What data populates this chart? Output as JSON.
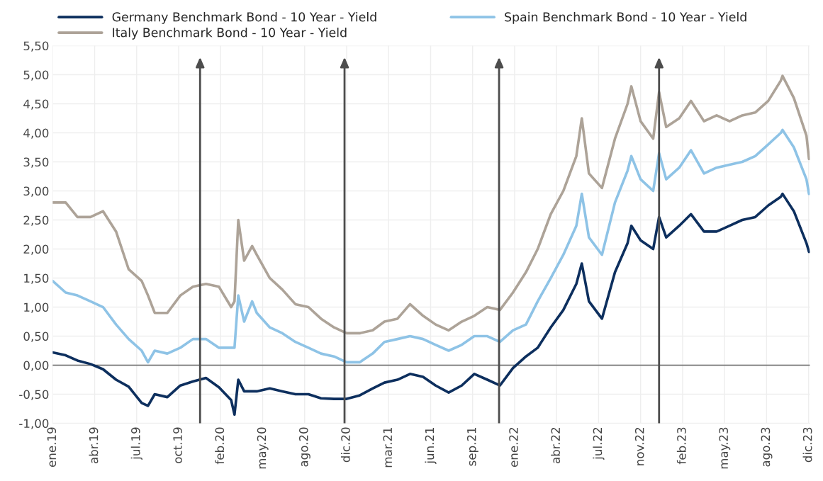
{
  "chart_data": {
    "type": "line",
    "x": [
      "2019-01-01",
      "2019-02-01",
      "2019-03-01",
      "2019-04-01",
      "2019-05-01",
      "2019-06-01",
      "2019-07-01",
      "2019-08-01",
      "2019-08-16",
      "2019-09-01",
      "2019-10-01",
      "2019-11-01",
      "2019-12-01",
      "2020-01-01",
      "2020-02-01",
      "2020-03-01",
      "2020-03-09",
      "2020-03-18",
      "2020-04-01",
      "2020-04-20",
      "2020-05-01",
      "2020-06-01",
      "2020-07-01",
      "2020-08-01",
      "2020-09-01",
      "2020-10-01",
      "2020-11-01",
      "2020-12-01",
      "2021-01-01",
      "2021-02-01",
      "2021-03-01",
      "2021-04-01",
      "2021-05-01",
      "2021-06-01",
      "2021-07-01",
      "2021-08-01",
      "2021-09-01",
      "2021-10-01",
      "2021-11-01",
      "2021-12-01",
      "2022-01-01",
      "2022-02-01",
      "2022-03-01",
      "2022-04-01",
      "2022-05-01",
      "2022-06-01",
      "2022-06-14",
      "2022-07-01",
      "2022-08-01",
      "2022-09-01",
      "2022-10-01",
      "2022-10-10",
      "2022-11-01",
      "2022-12-01",
      "2022-12-15",
      "2023-01-01",
      "2023-02-01",
      "2023-03-01",
      "2023-04-01",
      "2023-05-01",
      "2023-06-01",
      "2023-07-01",
      "2023-08-01",
      "2023-09-01",
      "2023-10-01",
      "2023-10-05",
      "2023-11-01",
      "2023-12-01",
      "2023-12-07"
    ],
    "series": [
      {
        "name": "Germany Benchmark Bond - 10 Year - Yield",
        "color": "#0d2f5e",
        "values": [
          0.22,
          0.17,
          0.08,
          0.02,
          -0.07,
          -0.25,
          -0.37,
          -0.65,
          -0.7,
          -0.5,
          -0.55,
          -0.35,
          -0.28,
          -0.22,
          -0.38,
          -0.6,
          -0.85,
          -0.25,
          -0.45,
          -0.45,
          -0.45,
          -0.4,
          -0.45,
          -0.5,
          -0.5,
          -0.57,
          -0.58,
          -0.58,
          -0.52,
          -0.4,
          -0.3,
          -0.25,
          -0.15,
          -0.2,
          -0.35,
          -0.47,
          -0.35,
          -0.15,
          -0.25,
          -0.35,
          -0.05,
          0.15,
          0.3,
          0.65,
          0.95,
          1.4,
          1.75,
          1.1,
          0.8,
          1.6,
          2.1,
          2.4,
          2.15,
          2.0,
          2.55,
          2.2,
          2.4,
          2.6,
          2.3,
          2.3,
          2.4,
          2.5,
          2.55,
          2.75,
          2.9,
          2.95,
          2.65,
          2.1,
          1.95
        ]
      },
      {
        "name": "Spain Benchmark Bond - 10 Year - Yield",
        "color": "#8ec3e6",
        "values": [
          1.45,
          1.25,
          1.2,
          1.1,
          1.0,
          0.7,
          0.45,
          0.25,
          0.05,
          0.25,
          0.2,
          0.3,
          0.45,
          0.45,
          0.3,
          0.3,
          0.3,
          1.2,
          0.75,
          1.1,
          0.9,
          0.65,
          0.55,
          0.4,
          0.3,
          0.2,
          0.15,
          0.05,
          0.05,
          0.2,
          0.4,
          0.45,
          0.5,
          0.45,
          0.35,
          0.25,
          0.35,
          0.5,
          0.5,
          0.4,
          0.6,
          0.7,
          1.1,
          1.5,
          1.9,
          2.4,
          2.95,
          2.2,
          1.9,
          2.8,
          3.35,
          3.6,
          3.2,
          3.0,
          3.65,
          3.2,
          3.4,
          3.7,
          3.3,
          3.4,
          3.45,
          3.5,
          3.6,
          3.8,
          4.0,
          4.05,
          3.75,
          3.2,
          2.95
        ]
      },
      {
        "name": "Italy Benchmark Bond - 10 Year - Yield",
        "color": "#ada398",
        "values": [
          2.8,
          2.8,
          2.55,
          2.55,
          2.65,
          2.3,
          1.65,
          1.45,
          1.2,
          0.9,
          0.9,
          1.2,
          1.35,
          1.4,
          1.35,
          1.0,
          1.1,
          2.5,
          1.8,
          2.05,
          1.9,
          1.5,
          1.3,
          1.05,
          1.0,
          0.8,
          0.65,
          0.55,
          0.55,
          0.6,
          0.75,
          0.8,
          1.05,
          0.85,
          0.7,
          0.6,
          0.75,
          0.85,
          1.0,
          0.95,
          1.25,
          1.6,
          2.0,
          2.6,
          3.0,
          3.6,
          4.25,
          3.3,
          3.05,
          3.9,
          4.5,
          4.8,
          4.2,
          3.9,
          4.7,
          4.1,
          4.25,
          4.55,
          4.2,
          4.3,
          4.2,
          4.3,
          4.35,
          4.55,
          4.9,
          4.98,
          4.6,
          3.95,
          3.55
        ]
      }
    ],
    "xlim": [
      "2019-01-01",
      "2023-12-09"
    ],
    "xticks": [
      {
        "value": "2019-01-01",
        "label": "ene.19"
      },
      {
        "value": "2019-04-11",
        "label": "abr.19"
      },
      {
        "value": "2019-07-20",
        "label": "jul.19"
      },
      {
        "value": "2019-10-28",
        "label": "oct.19"
      },
      {
        "value": "2020-02-05",
        "label": "feb.20"
      },
      {
        "value": "2020-05-15",
        "label": "may.20"
      },
      {
        "value": "2020-08-23",
        "label": "ago.20"
      },
      {
        "value": "2020-12-01",
        "label": "dic.20"
      },
      {
        "value": "2021-03-11",
        "label": "mar.21"
      },
      {
        "value": "2021-06-19",
        "label": "jun.21"
      },
      {
        "value": "2021-09-27",
        "label": "sep.21"
      },
      {
        "value": "2022-01-05",
        "label": "ene.22"
      },
      {
        "value": "2022-04-15",
        "label": "abr.22"
      },
      {
        "value": "2022-07-24",
        "label": "jul.22"
      },
      {
        "value": "2022-11-01",
        "label": "nov.22"
      },
      {
        "value": "2023-02-09",
        "label": "feb.23"
      },
      {
        "value": "2023-05-20",
        "label": "may.23"
      },
      {
        "value": "2023-08-28",
        "label": "ago.23"
      },
      {
        "value": "2023-12-06",
        "label": "dic.23"
      }
    ],
    "ylim": [
      -1.0,
      5.5
    ],
    "yticks": [
      {
        "value": -1.0,
        "label": "-1,00"
      },
      {
        "value": -0.5,
        "label": "-0,50"
      },
      {
        "value": 0,
        "label": "0,00"
      },
      {
        "value": 0.5,
        "label": "0,50"
      },
      {
        "value": 1.0,
        "label": "1,00"
      },
      {
        "value": 1.5,
        "label": "1,50"
      },
      {
        "value": 2.0,
        "label": "2,00"
      },
      {
        "value": 2.5,
        "label": "2,50"
      },
      {
        "value": 3.0,
        "label": "3,00"
      },
      {
        "value": 3.5,
        "label": "3,50"
      },
      {
        "value": 4.0,
        "label": "4,00"
      },
      {
        "value": 4.5,
        "label": "4,50"
      },
      {
        "value": 5.0,
        "label": "5,00"
      },
      {
        "value": 5.5,
        "label": "5,50"
      }
    ],
    "ref_lines": [
      {
        "axis": "y",
        "value": 0,
        "color": "#666666"
      },
      {
        "axis": "x",
        "value": "2019-12-18",
        "color": "#4d4d4d"
      },
      {
        "axis": "x",
        "value": "2020-11-26",
        "color": "#4d4d4d"
      },
      {
        "axis": "x",
        "value": "2021-11-29",
        "color": "#4d4d4d"
      },
      {
        "axis": "x",
        "value": "2022-12-15",
        "color": "#4d4d4d"
      }
    ],
    "grid": true,
    "legend": "top",
    "marker": "none",
    "line_style": "solid"
  }
}
